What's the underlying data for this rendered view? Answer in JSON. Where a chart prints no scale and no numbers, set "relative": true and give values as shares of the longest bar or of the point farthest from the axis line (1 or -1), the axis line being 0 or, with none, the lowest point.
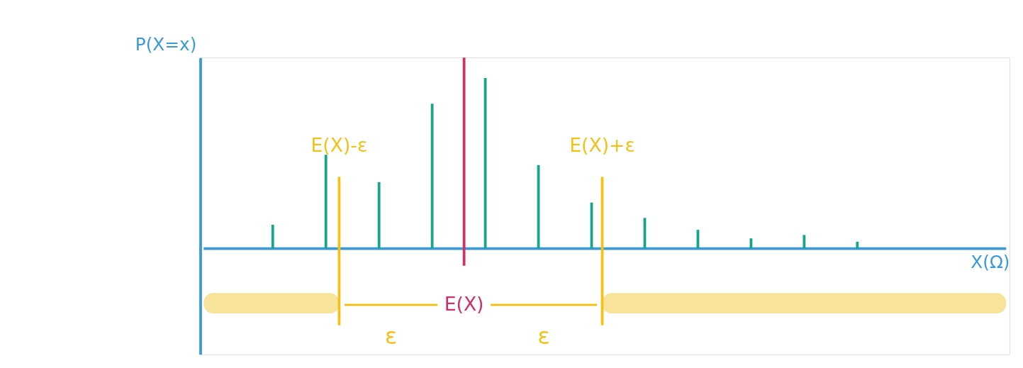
{
  "chart_data": {
    "type": "bar",
    "relative": true,
    "grid": false,
    "xlabel": "X(Ω)",
    "ylabel": "P(X=x)",
    "categories": [
      null,
      null,
      null,
      null,
      null,
      null,
      null,
      null,
      null,
      null,
      null,
      null
    ],
    "series": [
      {
        "color": "#17a589",
        "values": [
          0.14,
          0.55,
          0.39,
          0.85,
          1,
          0.49,
          0.27,
          0.18,
          0.11,
          0.06,
          0.08,
          0.04
        ]
      }
    ],
    "ref_lines": [
      {
        "axis": "x",
        "label": "E(X)",
        "color": "#d0306a"
      },
      {
        "axis": "x",
        "label": "E(X)-ε",
        "color": "#f2c21b"
      },
      {
        "axis": "x",
        "label": "E(X)+ε",
        "color": "#f2c21b"
      }
    ],
    "annotations": [
      "ε",
      "ε"
    ]
  }
}
